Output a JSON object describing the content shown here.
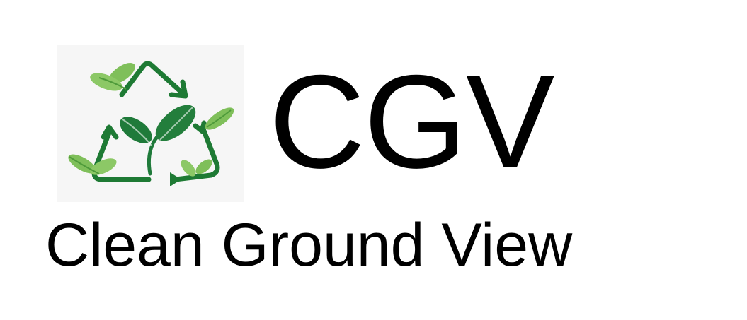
{
  "brand": {
    "abbreviation": "CGV",
    "name": "Clean Ground View"
  },
  "logo": {
    "icon": "recycling-leaves-icon"
  },
  "colors": {
    "arrow_green": "#1e7a34",
    "leaf_dark": "#1f7a3a",
    "leaf_light": "#7fbf5a",
    "logo_background": "#f6f6f6",
    "text": "#000000"
  }
}
